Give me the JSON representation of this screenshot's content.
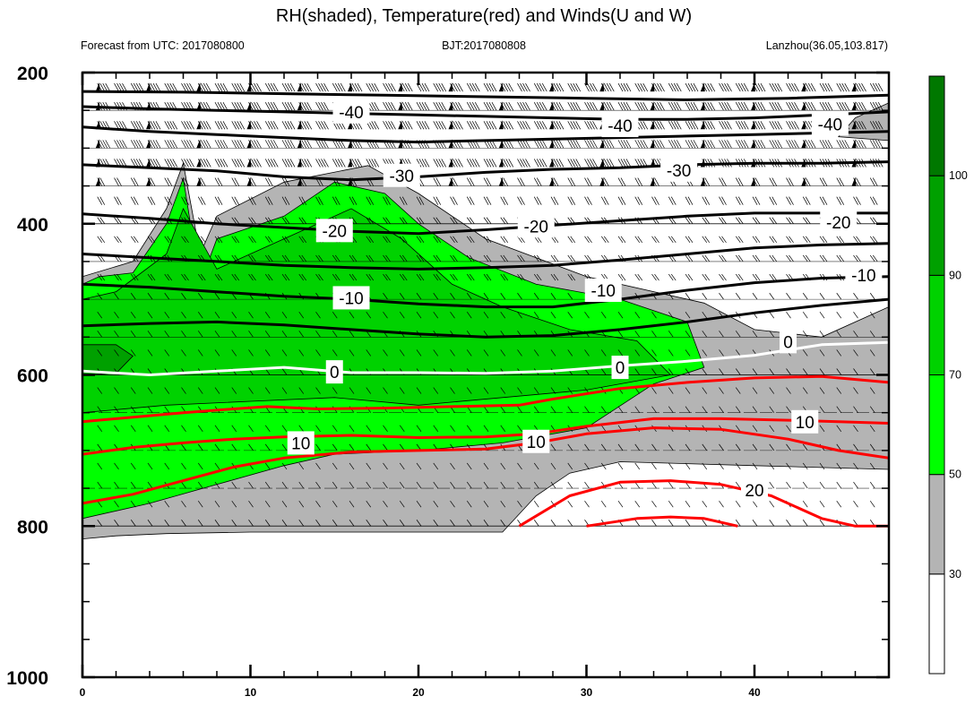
{
  "chart_data": {
    "type": "contour",
    "title": "RH(shaded), Temperature(red) and Winds(U and W)",
    "subtitle_left": "Forecast from UTC: 2017080800",
    "subtitle_center": "BJT:2017080808",
    "subtitle_right": "Lanzhou(36.05,103.817)",
    "xlim": [
      0,
      48
    ],
    "ylim": [
      1000,
      200
    ],
    "x_ticks": [
      0,
      10,
      20,
      30,
      40
    ],
    "y_ticks": [
      200,
      400,
      600,
      800,
      1000
    ],
    "colorbar": {
      "levels": [
        30,
        50,
        70,
        90,
        100
      ],
      "colors": [
        "#ffffff",
        "#b4b4b4",
        "#00ff00",
        "#00d200",
        "#00a000",
        "#007800"
      ]
    },
    "shaded_regions": [
      {
        "level": 30,
        "polygon": [
          [
            0,
            470
          ],
          [
            0,
            817
          ],
          [
            2,
            813
          ],
          [
            5,
            810
          ],
          [
            10,
            808
          ],
          [
            20,
            808
          ],
          [
            25,
            808
          ],
          [
            27,
            760
          ],
          [
            29,
            730
          ],
          [
            32,
            715
          ],
          [
            40,
            720
          ],
          [
            48,
            725
          ],
          [
            48,
            510
          ],
          [
            44,
            550
          ],
          [
            40,
            540
          ],
          [
            37,
            505
          ],
          [
            30,
            470
          ],
          [
            24,
            420
          ],
          [
            20,
            360
          ],
          [
            17,
            323
          ],
          [
            12,
            345
          ],
          [
            8,
            390
          ],
          [
            7,
            440
          ],
          [
            6,
            320
          ],
          [
            5,
            380
          ],
          [
            3,
            450
          ]
        ]
      },
      {
        "level": 30,
        "polygon": [
          [
            46,
            260
          ],
          [
            48,
            240
          ],
          [
            48,
            290
          ],
          [
            45,
            285
          ]
        ]
      },
      {
        "level": 50,
        "polygon": [
          [
            0,
            480
          ],
          [
            0,
            790
          ],
          [
            4,
            770
          ],
          [
            8,
            745
          ],
          [
            12,
            720
          ],
          [
            15,
            705
          ],
          [
            20,
            700
          ],
          [
            25,
            690
          ],
          [
            30,
            670
          ],
          [
            34,
            612
          ],
          [
            37,
            590
          ],
          [
            36,
            530
          ],
          [
            32,
            500
          ],
          [
            27,
            480
          ],
          [
            23,
            445
          ],
          [
            20,
            400
          ],
          [
            18,
            360
          ],
          [
            15,
            345
          ],
          [
            12,
            390
          ],
          [
            8,
            420
          ],
          [
            7,
            480
          ],
          [
            6,
            340
          ],
          [
            5,
            400
          ],
          [
            3,
            465
          ],
          [
            1,
            470
          ]
        ]
      },
      {
        "level": 70,
        "polygon": [
          [
            0,
            500
          ],
          [
            0,
            650
          ],
          [
            5,
            640
          ],
          [
            10,
            635
          ],
          [
            15,
            630
          ],
          [
            20,
            640
          ],
          [
            25,
            630
          ],
          [
            30,
            620
          ],
          [
            35,
            600
          ],
          [
            33,
            555
          ],
          [
            29,
            540
          ],
          [
            25,
            510
          ],
          [
            22,
            480
          ],
          [
            19,
            420
          ],
          [
            16,
            380
          ],
          [
            12,
            420
          ],
          [
            8,
            460
          ],
          [
            6,
            380
          ],
          [
            5,
            440
          ],
          [
            2,
            490
          ]
        ]
      },
      {
        "level": 90,
        "polygon": [
          [
            0,
            560
          ],
          [
            0,
            600
          ],
          [
            2,
            598
          ],
          [
            3,
            575
          ],
          [
            2,
            560
          ]
        ]
      }
    ],
    "temperature_contours": [
      {
        "level": 20,
        "color": "red",
        "points": [
          [
            26,
            800
          ],
          [
            29,
            760
          ],
          [
            32,
            742
          ],
          [
            35,
            740
          ],
          [
            38,
            745
          ],
          [
            41,
            760
          ],
          [
            44,
            790
          ],
          [
            46,
            800
          ],
          [
            48,
            800
          ]
        ]
      },
      {
        "level": 20,
        "color": "red",
        "points": [
          [
            30,
            800
          ],
          [
            33,
            790
          ],
          [
            35,
            788
          ],
          [
            37,
            790
          ],
          [
            39,
            800
          ]
        ]
      },
      {
        "level": 10,
        "color": "red",
        "points": [
          [
            0,
            770
          ],
          [
            3,
            758
          ],
          [
            6,
            740
          ],
          [
            9,
            722
          ],
          [
            12,
            710
          ],
          [
            16,
            702
          ],
          [
            20,
            700
          ],
          [
            24,
            698
          ],
          [
            27,
            690
          ],
          [
            30,
            678
          ],
          [
            34,
            670
          ],
          [
            38,
            672
          ],
          [
            42,
            685
          ],
          [
            45,
            700
          ],
          [
            48,
            710
          ]
        ]
      },
      {
        "level": 10,
        "color": "red",
        "points": [
          [
            0,
            705
          ],
          [
            3,
            696
          ],
          [
            6,
            690
          ],
          [
            9,
            685
          ],
          [
            12,
            682
          ],
          [
            16,
            680
          ],
          [
            20,
            683
          ],
          [
            24,
            682
          ],
          [
            27,
            678
          ],
          [
            30,
            668
          ],
          [
            34,
            658
          ],
          [
            38,
            658
          ],
          [
            42,
            660
          ],
          [
            45,
            662
          ],
          [
            48,
            664
          ]
        ]
      },
      {
        "level": 0,
        "color": "red",
        "points": [
          [
            0,
            662
          ],
          [
            3,
            656
          ],
          [
            6,
            650
          ],
          [
            9,
            645
          ],
          [
            11,
            642
          ],
          [
            14,
            645
          ],
          [
            18,
            644
          ],
          [
            22,
            642
          ],
          [
            26,
            640
          ],
          [
            28,
            632
          ],
          [
            32,
            618
          ],
          [
            36,
            610
          ],
          [
            40,
            604
          ],
          [
            44,
            602
          ],
          [
            48,
            610
          ]
        ]
      },
      {
        "level": 0,
        "color": "white",
        "points": [
          [
            0,
            595
          ],
          [
            4,
            600
          ],
          [
            8,
            595
          ],
          [
            12,
            590
          ],
          [
            16,
            597
          ],
          [
            20,
            597
          ],
          [
            24,
            598
          ],
          [
            28,
            595
          ],
          [
            32,
            588
          ],
          [
            36,
            582
          ],
          [
            40,
            574
          ],
          [
            44,
            560
          ],
          [
            48,
            557
          ]
        ]
      },
      {
        "level": -10,
        "color": "black",
        "points": [
          [
            0,
            535
          ],
          [
            4,
            532
          ],
          [
            8,
            530
          ],
          [
            12,
            534
          ],
          [
            16,
            540
          ],
          [
            20,
            546
          ],
          [
            24,
            550
          ],
          [
            28,
            548
          ],
          [
            32,
            540
          ],
          [
            36,
            530
          ],
          [
            40,
            518
          ],
          [
            44,
            508
          ],
          [
            48,
            500
          ]
        ]
      },
      {
        "level": -10,
        "color": "black",
        "points": [
          [
            0,
            480
          ],
          [
            4,
            484
          ],
          [
            8,
            490
          ],
          [
            12,
            496
          ],
          [
            16,
            500
          ],
          [
            20,
            506
          ],
          [
            24,
            510
          ],
          [
            28,
            510
          ],
          [
            32,
            500
          ],
          [
            36,
            488
          ],
          [
            40,
            478
          ],
          [
            44,
            472
          ],
          [
            48,
            470
          ]
        ]
      },
      {
        "level": -20,
        "color": "black",
        "points": [
          [
            0,
            440
          ],
          [
            4,
            445
          ],
          [
            8,
            450
          ],
          [
            12,
            455
          ],
          [
            16,
            458
          ],
          [
            20,
            460
          ],
          [
            24,
            458
          ],
          [
            28,
            455
          ],
          [
            32,
            448
          ],
          [
            36,
            440
          ],
          [
            40,
            432
          ],
          [
            44,
            428
          ],
          [
            48,
            426
          ]
        ]
      },
      {
        "level": -20,
        "color": "black",
        "points": [
          [
            0,
            387
          ],
          [
            4,
            393
          ],
          [
            8,
            400
          ],
          [
            12,
            405
          ],
          [
            16,
            410
          ],
          [
            20,
            413
          ],
          [
            24,
            408
          ],
          [
            28,
            402
          ],
          [
            32,
            396
          ],
          [
            36,
            390
          ],
          [
            40,
            386
          ],
          [
            44,
            386
          ],
          [
            48,
            386
          ]
        ]
      },
      {
        "level": -30,
        "color": "black",
        "points": [
          [
            0,
            322
          ],
          [
            4,
            326
          ],
          [
            8,
            330
          ],
          [
            12,
            338
          ],
          [
            16,
            342
          ],
          [
            20,
            338
          ],
          [
            24,
            332
          ],
          [
            28,
            328
          ],
          [
            32,
            326
          ],
          [
            36,
            322
          ],
          [
            40,
            320
          ],
          [
            44,
            320
          ],
          [
            48,
            318
          ]
        ]
      },
      {
        "level": -40,
        "color": "black",
        "points": [
          [
            0,
            272
          ],
          [
            4,
            278
          ],
          [
            8,
            282
          ],
          [
            12,
            286
          ],
          [
            16,
            290
          ],
          [
            20,
            292
          ],
          [
            24,
            290
          ],
          [
            28,
            288
          ],
          [
            32,
            286
          ],
          [
            36,
            284
          ],
          [
            40,
            282
          ],
          [
            44,
            280
          ],
          [
            48,
            278
          ]
        ]
      },
      {
        "level": -40,
        "color": "black",
        "points": [
          [
            0,
            245
          ],
          [
            4,
            248
          ],
          [
            8,
            250
          ],
          [
            12,
            252
          ],
          [
            16,
            254
          ],
          [
            20,
            256
          ],
          [
            24,
            258
          ],
          [
            28,
            260
          ],
          [
            32,
            262
          ],
          [
            36,
            262
          ],
          [
            40,
            260
          ],
          [
            44,
            256
          ],
          [
            48,
            252
          ]
        ]
      },
      {
        "level": -40,
        "color": "black",
        "points": [
          [
            0,
            225
          ],
          [
            6,
            226
          ],
          [
            12,
            228
          ],
          [
            18,
            230
          ],
          [
            24,
            232
          ],
          [
            30,
            234
          ],
          [
            36,
            236
          ],
          [
            42,
            234
          ],
          [
            48,
            230
          ]
        ]
      }
    ],
    "contour_labels": [
      {
        "text": "-40",
        "x": 16,
        "y": 252
      },
      {
        "text": "-40",
        "x": 32,
        "y": 270
      },
      {
        "text": "-40",
        "x": 44.5,
        "y": 268
      },
      {
        "text": "-30",
        "x": 19,
        "y": 336
      },
      {
        "text": "-30",
        "x": 35.5,
        "y": 329
      },
      {
        "text": "-20",
        "x": 15,
        "y": 409
      },
      {
        "text": "-20",
        "x": 27,
        "y": 403
      },
      {
        "text": "-20",
        "x": 45,
        "y": 398
      },
      {
        "text": "-10",
        "x": 16,
        "y": 498
      },
      {
        "text": "-10",
        "x": 31,
        "y": 488
      },
      {
        "text": "-10",
        "x": 46.5,
        "y": 468
      },
      {
        "text": "0",
        "x": 15,
        "y": 596
      },
      {
        "text": "0",
        "x": 32,
        "y": 590
      },
      {
        "text": "0",
        "x": 42,
        "y": 556
      },
      {
        "text": "10",
        "x": 13,
        "y": 690
      },
      {
        "text": "10",
        "x": 27,
        "y": 688
      },
      {
        "text": "10",
        "x": 43,
        "y": 662
      },
      {
        "text": "20",
        "x": 40,
        "y": 752
      }
    ]
  }
}
